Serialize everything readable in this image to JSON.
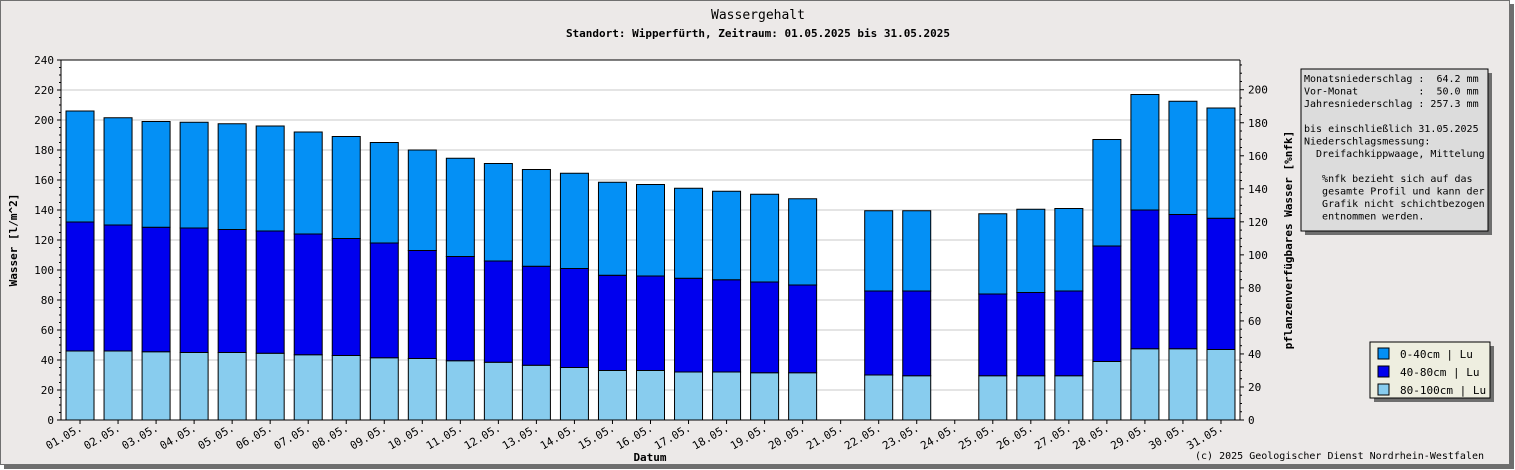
{
  "chart_data": {
    "type": "bar",
    "stacked": true,
    "title": "Wassergehalt",
    "subtitle": "Standort: Wipperfürth, Zeitraum: 01.05.2025 bis 31.05.2025",
    "xlabel": "Datum",
    "ylabel": "Wasser [l/m^2]",
    "y2label": "pflanzenverfügbares Wasser [%nfk]",
    "ylim": [
      0,
      240
    ],
    "y2lim": [
      0,
      218
    ],
    "y_ticks": [
      0,
      20,
      40,
      60,
      80,
      100,
      120,
      140,
      160,
      180,
      200,
      220,
      240
    ],
    "y2_ticks": [
      0,
      20,
      40,
      60,
      80,
      100,
      120,
      140,
      160,
      180,
      200
    ],
    "grid": true,
    "legend_position": "bottom-right",
    "categories": [
      "01.05.",
      "02.05.",
      "03.05.",
      "04.05.",
      "05.05.",
      "06.05.",
      "07.05.",
      "08.05.",
      "09.05.",
      "10.05.",
      "11.05.",
      "12.05.",
      "13.05.",
      "14.05.",
      "15.05.",
      "16.05.",
      "17.05.",
      "18.05.",
      "19.05.",
      "20.05.",
      "21.05.",
      "22.05.",
      "23.05.",
      "24.05.",
      "25.05.",
      "26.05.",
      "27.05.",
      "28.05.",
      "29.05.",
      "30.05.",
      "31.05."
    ],
    "series": [
      {
        "name": "80-100cm | Lu",
        "color": "#88ccee",
        "values": [
          46,
          46,
          45.5,
          45,
          45,
          44.5,
          43.5,
          43,
          41.5,
          41,
          39.5,
          38.5,
          36.5,
          35,
          33,
          33,
          32,
          32,
          31.5,
          31.5,
          null,
          30,
          29.5,
          null,
          29.5,
          29.5,
          29.5,
          39,
          47.5,
          47.5,
          47
        ]
      },
      {
        "name": "40-80cm | Lu",
        "color": "#0000ee",
        "values": [
          86,
          84,
          83,
          83,
          82,
          81.5,
          80.5,
          78,
          76.5,
          72,
          69.5,
          67.5,
          66,
          66,
          63.5,
          63,
          62.5,
          61.5,
          60.5,
          58.5,
          null,
          56,
          56.5,
          null,
          54.5,
          55.5,
          56.5,
          77,
          92.5,
          89.5,
          87.5
        ]
      },
      {
        "name": "0-40cm | Lu",
        "color": "#0490f5",
        "values": [
          74,
          71.5,
          70.5,
          70.5,
          70.5,
          70,
          68,
          68,
          67,
          67,
          65.5,
          65,
          64.5,
          63.5,
          62,
          61,
          60,
          59,
          58.5,
          57.5,
          null,
          53.5,
          53.5,
          null,
          53.5,
          55.5,
          55,
          71,
          77,
          75.5,
          73.5
        ]
      }
    ]
  },
  "info_box": {
    "lines": [
      "Monatsniederschlag :  64.2 mm",
      "Vor-Monat          :  50.0 mm",
      "Jahresniederschlag : 257.3 mm",
      "",
      "bis einschließlich 31.05.2025",
      "Niederschlagsmessung:",
      "  Dreifachkippwaage, Mittelung",
      "",
      "   %nfk bezieht sich auf das",
      "   gesamte Profil und kann der",
      "   Grafik nicht schichtbezogen",
      "   entnommen werden."
    ]
  },
  "copyright": "(c) 2025 Geologischer Dienst Nordrhein-Westfalen"
}
